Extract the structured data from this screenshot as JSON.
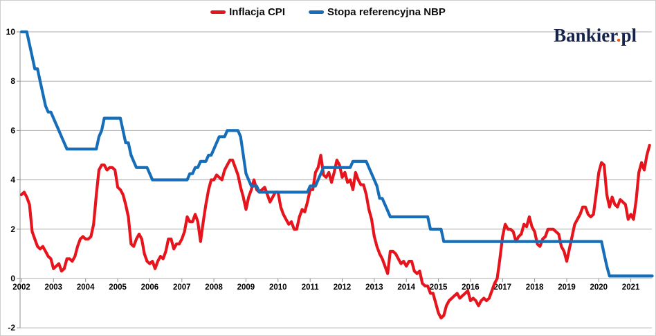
{
  "legend": {
    "items": [
      {
        "label": "Inflacja CPI",
        "color": "#e6151d"
      },
      {
        "label": "Stopa referencyjna NBP",
        "color": "#166eb9"
      }
    ]
  },
  "logo": {
    "text_main": "Bankier",
    "dot": ".",
    "text_suffix": "pl",
    "navy": "#15234d",
    "orange": "#e8580c"
  },
  "chart_data": {
    "type": "line",
    "title": "",
    "x_frequency": "monthly",
    "x_start": "2002-01",
    "x_tick_labels": [
      "2002",
      "2003",
      "2004",
      "2005",
      "2006",
      "2007",
      "2008",
      "2009",
      "2010",
      "2011",
      "2012",
      "2013",
      "2014",
      "2015",
      "2016",
      "2017",
      "2018",
      "2019",
      "2020",
      "2021"
    ],
    "y_tick_labels": [
      "10",
      "8",
      "6",
      "4",
      "2",
      "0",
      "-2"
    ],
    "y_ticks": [
      10,
      8,
      6,
      4,
      2,
      0,
      -2
    ],
    "ylim": [
      -2,
      10
    ],
    "grid": "horizontal-only",
    "legend_position": "top-center",
    "grid_color": "#aeaeae",
    "axis_color": "#8f8f8f",
    "series": [
      {
        "name": "Inflacja CPI",
        "color": "#e6151d",
        "draw_order": 1,
        "monthly_values_by_year": {
          "2002": [
            3.4,
            3.5,
            3.3,
            3.0,
            1.9,
            1.6,
            1.3,
            1.2,
            1.3,
            1.1,
            0.9,
            0.8
          ],
          "2003": [
            0.4,
            0.5,
            0.6,
            0.3,
            0.4,
            0.8,
            0.8,
            0.7,
            0.9,
            1.3,
            1.6,
            1.7
          ],
          "2004": [
            1.6,
            1.6,
            1.7,
            2.2,
            3.4,
            4.4,
            4.6,
            4.6,
            4.4,
            4.5,
            4.5,
            4.4
          ],
          "2005": [
            3.7,
            3.6,
            3.4,
            3.0,
            2.5,
            1.4,
            1.3,
            1.6,
            1.8,
            1.6,
            1.0,
            0.7
          ],
          "2006": [
            0.6,
            0.7,
            0.4,
            0.7,
            0.9,
            0.8,
            1.1,
            1.6,
            1.6,
            1.2,
            1.4,
            1.4
          ],
          "2007": [
            1.6,
            1.9,
            2.5,
            2.3,
            2.3,
            2.6,
            2.3,
            1.5,
            2.3,
            3.0,
            3.6,
            4.0
          ],
          "2008": [
            4.0,
            4.2,
            4.1,
            4.0,
            4.4,
            4.6,
            4.8,
            4.8,
            4.5,
            4.2,
            3.7,
            3.3
          ],
          "2009": [
            2.8,
            3.3,
            3.6,
            4.0,
            3.6,
            3.5,
            3.6,
            3.7,
            3.4,
            3.1,
            3.3,
            3.5
          ],
          "2010": [
            3.5,
            2.9,
            2.6,
            2.4,
            2.2,
            2.3,
            2.0,
            2.0,
            2.5,
            2.8,
            2.7,
            3.1
          ],
          "2011": [
            3.6,
            3.6,
            4.3,
            4.5,
            5.0,
            4.2,
            4.1,
            4.3,
            3.9,
            4.3,
            4.8,
            4.6
          ],
          "2012": [
            4.1,
            4.3,
            3.9,
            4.0,
            3.6,
            4.3,
            4.0,
            3.8,
            3.8,
            3.4,
            2.8,
            2.4
          ],
          "2013": [
            1.7,
            1.3,
            1.0,
            0.8,
            0.5,
            0.2,
            1.1,
            1.1,
            1.0,
            0.8,
            0.6,
            0.7
          ],
          "2014": [
            0.5,
            0.7,
            0.7,
            0.3,
            0.2,
            0.3,
            -0.2,
            -0.3,
            -0.3,
            -0.6,
            -0.6,
            -1.0
          ],
          "2015": [
            -1.4,
            -1.6,
            -1.5,
            -1.1,
            -0.9,
            -0.8,
            -0.7,
            -0.6,
            -0.8,
            -0.7,
            -0.6,
            -0.5
          ],
          "2016": [
            -0.9,
            -0.8,
            -0.9,
            -1.1,
            -0.9,
            -0.8,
            -0.9,
            -0.8,
            -0.5,
            -0.2,
            0.0,
            0.8
          ],
          "2017": [
            1.7,
            2.2,
            2.0,
            2.0,
            1.9,
            1.5,
            1.7,
            1.8,
            2.2,
            2.1,
            2.5,
            2.1
          ],
          "2018": [
            1.9,
            1.4,
            1.3,
            1.6,
            1.7,
            2.0,
            2.0,
            2.0,
            1.9,
            1.8,
            1.3,
            1.1
          ],
          "2019": [
            0.7,
            1.2,
            1.7,
            2.2,
            2.4,
            2.6,
            2.9,
            2.9,
            2.6,
            2.5,
            2.6,
            3.4
          ],
          "2020": [
            4.3,
            4.7,
            4.6,
            3.4,
            2.9,
            3.3,
            3.0,
            2.9,
            3.2,
            3.1,
            3.0,
            2.4
          ],
          "2021": [
            2.6,
            2.4,
            3.2,
            4.3,
            4.7,
            4.4,
            5.0,
            5.4
          ]
        }
      },
      {
        "name": "Stopa referencyjna NBP",
        "color": "#166eb9",
        "draw_order": 2,
        "monthly_values_by_year": {
          "2002": [
            10.0,
            10.0,
            10.0,
            9.5,
            9.0,
            8.5,
            8.5,
            8.0,
            7.5,
            7.0,
            6.75,
            6.75
          ],
          "2003": [
            6.5,
            6.25,
            6.0,
            5.75,
            5.5,
            5.25,
            5.25,
            5.25,
            5.25,
            5.25,
            5.25,
            5.25
          ],
          "2004": [
            5.25,
            5.25,
            5.25,
            5.25,
            5.25,
            5.75,
            6.0,
            6.5,
            6.5,
            6.5,
            6.5,
            6.5
          ],
          "2005": [
            6.5,
            6.5,
            6.0,
            5.5,
            5.5,
            5.0,
            4.75,
            4.5,
            4.5,
            4.5,
            4.5,
            4.5
          ],
          "2006": [
            4.25,
            4.0,
            4.0,
            4.0,
            4.0,
            4.0,
            4.0,
            4.0,
            4.0,
            4.0,
            4.0,
            4.0
          ],
          "2007": [
            4.0,
            4.0,
            4.0,
            4.25,
            4.25,
            4.5,
            4.5,
            4.75,
            4.75,
            4.75,
            5.0,
            5.0
          ],
          "2008": [
            5.25,
            5.5,
            5.75,
            5.75,
            5.75,
            6.0,
            6.0,
            6.0,
            6.0,
            6.0,
            5.75,
            5.0
          ],
          "2009": [
            4.25,
            4.0,
            3.75,
            3.75,
            3.75,
            3.5,
            3.5,
            3.5,
            3.5,
            3.5,
            3.5,
            3.5
          ],
          "2010": [
            3.5,
            3.5,
            3.5,
            3.5,
            3.5,
            3.5,
            3.5,
            3.5,
            3.5,
            3.5,
            3.5,
            3.5
          ],
          "2011": [
            3.75,
            3.75,
            3.75,
            4.0,
            4.25,
            4.5,
            4.5,
            4.5,
            4.5,
            4.5,
            4.5,
            4.5
          ],
          "2012": [
            4.5,
            4.5,
            4.5,
            4.5,
            4.75,
            4.75,
            4.75,
            4.75,
            4.75,
            4.75,
            4.5,
            4.25
          ],
          "2013": [
            4.0,
            3.75,
            3.25,
            3.25,
            3.0,
            2.75,
            2.5,
            2.5,
            2.5,
            2.5,
            2.5,
            2.5
          ],
          "2014": [
            2.5,
            2.5,
            2.5,
            2.5,
            2.5,
            2.5,
            2.5,
            2.5,
            2.5,
            2.0,
            2.0,
            2.0
          ],
          "2015": [
            2.0,
            2.0,
            1.5,
            1.5,
            1.5,
            1.5,
            1.5,
            1.5,
            1.5,
            1.5,
            1.5,
            1.5
          ],
          "2016": [
            1.5,
            1.5,
            1.5,
            1.5,
            1.5,
            1.5,
            1.5,
            1.5,
            1.5,
            1.5,
            1.5,
            1.5
          ],
          "2017": [
            1.5,
            1.5,
            1.5,
            1.5,
            1.5,
            1.5,
            1.5,
            1.5,
            1.5,
            1.5,
            1.5,
            1.5
          ],
          "2018": [
            1.5,
            1.5,
            1.5,
            1.5,
            1.5,
            1.5,
            1.5,
            1.5,
            1.5,
            1.5,
            1.5,
            1.5
          ],
          "2019": [
            1.5,
            1.5,
            1.5,
            1.5,
            1.5,
            1.5,
            1.5,
            1.5,
            1.5,
            1.5,
            1.5,
            1.5
          ],
          "2020": [
            1.5,
            1.5,
            1.0,
            0.5,
            0.1,
            0.1,
            0.1,
            0.1,
            0.1,
            0.1,
            0.1,
            0.1
          ],
          "2021": [
            0.1,
            0.1,
            0.1,
            0.1,
            0.1,
            0.1,
            0.1,
            0.1,
            0.1
          ]
        }
      }
    ]
  }
}
